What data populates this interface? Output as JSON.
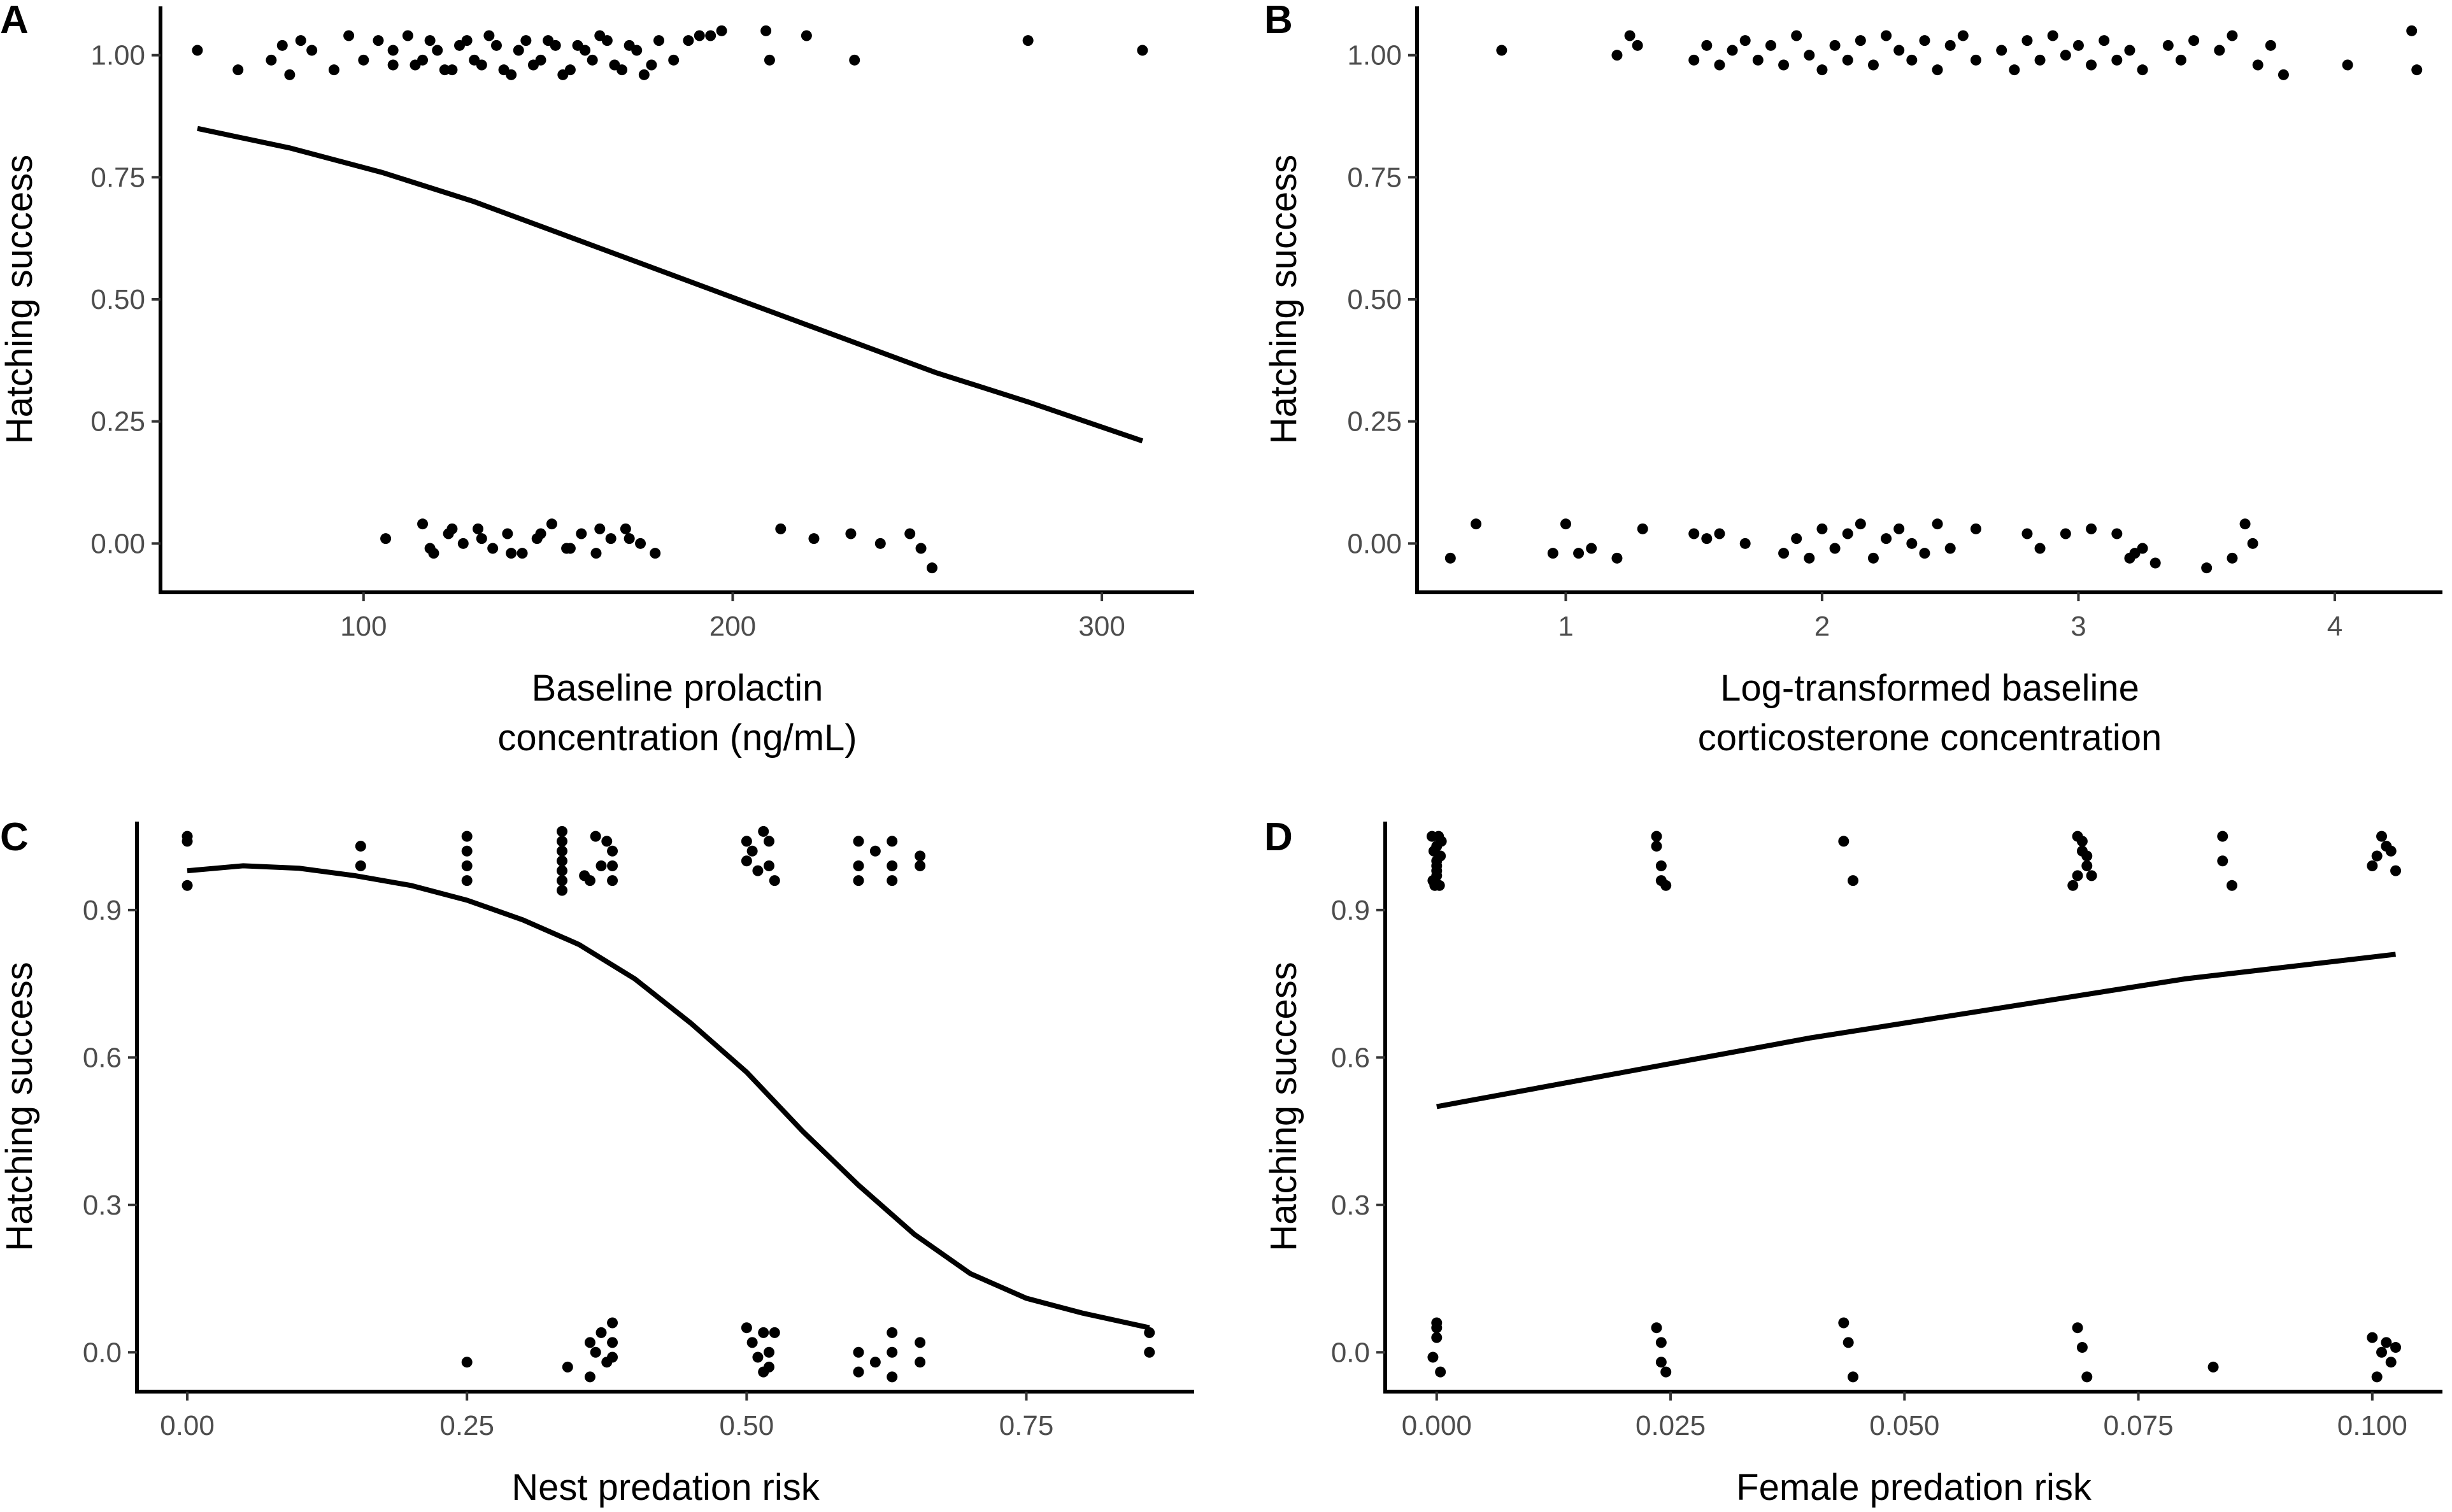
{
  "chart_data": [
    {
      "panel": "A",
      "type": "scatter",
      "xlabel": [
        "Baseline prolactin",
        "concentration (ng/mL)"
      ],
      "ylabel": "Hatching success",
      "xlim": [
        45,
        325
      ],
      "ylim": [
        -0.1,
        1.1
      ],
      "xticks": [
        100,
        200,
        300
      ],
      "xtick_labels": [
        "100",
        "200",
        "300"
      ],
      "yticks": [
        0,
        0.25,
        0.5,
        0.75,
        1
      ],
      "ytick_labels": [
        "0.00",
        "0.25",
        "0.50",
        "0.75",
        "1.00"
      ],
      "curve": {
        "x": [
          55,
          80,
          105,
          130,
          155,
          180,
          205,
          230,
          255,
          280,
          311
        ],
        "y": [
          0.85,
          0.81,
          0.76,
          0.7,
          0.63,
          0.56,
          0.49,
          0.42,
          0.35,
          0.29,
          0.21
        ]
      },
      "points": {
        "x": [
          55,
          66,
          75,
          78,
          80,
          83,
          86,
          92,
          96,
          100,
          104,
          108,
          112,
          116,
          120,
          124,
          128,
          132,
          136,
          140,
          144,
          148,
          152,
          156,
          160,
          164,
          168,
          172,
          176,
          180,
          184,
          108,
          114,
          118,
          122,
          126,
          130,
          134,
          138,
          142,
          146,
          150,
          154,
          158,
          162,
          166,
          170,
          174,
          178,
          188,
          191,
          194,
          197,
          209,
          210,
          220,
          233,
          280,
          311,
          106,
          116,
          119,
          123,
          127,
          131,
          135,
          139,
          143,
          147,
          151,
          155,
          159,
          163,
          167,
          171,
          175,
          179,
          118,
          124,
          132,
          140,
          148,
          156,
          164,
          172,
          213,
          222,
          232,
          240,
          248,
          251,
          254
        ],
        "y": [
          1.01,
          0.97,
          0.99,
          1.02,
          0.96,
          1.03,
          1.01,
          0.97,
          1.04,
          0.99,
          1.03,
          0.98,
          1.04,
          0.99,
          1.01,
          0.97,
          1.03,
          0.98,
          1.02,
          0.96,
          1.03,
          0.99,
          1.02,
          0.97,
          1.01,
          1.04,
          0.98,
          1.02,
          0.96,
          1.03,
          0.99,
          1.01,
          0.98,
          1.03,
          0.97,
          1.02,
          0.99,
          1.04,
          0.97,
          1.01,
          0.98,
          1.03,
          0.96,
          1.02,
          0.99,
          1.03,
          0.97,
          1.01,
          0.98,
          1.03,
          1.04,
          1.04,
          1.05,
          1.05,
          0.99,
          1.04,
          0.99,
          1.03,
          1.01,
          0.01,
          0.04,
          -0.02,
          0.02,
          0.0,
          0.03,
          -0.01,
          0.02,
          -0.02,
          0.01,
          0.04,
          -0.01,
          0.02,
          -0.02,
          0.01,
          0.03,
          0.0,
          -0.02,
          -0.01,
          0.03,
          0.01,
          -0.02,
          0.02,
          -0.01,
          0.03,
          0.01,
          0.03,
          0.01,
          0.02,
          0.0,
          0.02,
          -0.01,
          -0.05
        ]
      }
    },
    {
      "panel": "B",
      "type": "scatter",
      "xlabel": [
        "Log-transformed baseline",
        "corticosterone concentration"
      ],
      "ylabel": "Hatching success",
      "xlim": [
        0.42,
        4.42
      ],
      "ylim": [
        -0.1,
        1.1
      ],
      "xticks": [
        1,
        2,
        3,
        4
      ],
      "xtick_labels": [
        "1",
        "2",
        "3",
        "4"
      ],
      "yticks": [
        0,
        0.25,
        0.5,
        0.75,
        1
      ],
      "ytick_labels": [
        "0.00",
        "0.25",
        "0.50",
        "0.75",
        "1.00"
      ],
      "curve": null,
      "points": {
        "x": [
          0.75,
          1.2,
          1.25,
          1.28,
          1.5,
          1.55,
          1.6,
          1.65,
          1.7,
          1.75,
          1.8,
          1.85,
          1.9,
          1.95,
          2.0,
          2.05,
          2.1,
          2.15,
          2.2,
          2.25,
          2.3,
          2.35,
          2.4,
          2.45,
          2.5,
          2.55,
          2.6,
          2.7,
          2.75,
          2.8,
          2.85,
          2.9,
          2.95,
          3.0,
          3.05,
          3.1,
          3.15,
          3.2,
          3.25,
          3.35,
          3.4,
          3.45,
          3.55,
          3.6,
          3.7,
          3.75,
          3.8,
          4.05,
          4.3,
          4.32,
          0.55,
          0.65,
          0.95,
          1.0,
          1.05,
          1.1,
          1.2,
          1.3,
          1.5,
          1.55,
          1.6,
          1.7,
          1.85,
          1.9,
          1.95,
          2.0,
          2.05,
          2.1,
          2.15,
          2.2,
          2.25,
          2.3,
          2.35,
          2.4,
          2.45,
          2.5,
          2.6,
          2.8,
          2.85,
          2.95,
          3.05,
          3.15,
          3.2,
          3.22,
          3.25,
          3.3,
          3.5,
          3.6,
          3.65,
          3.68
        ],
        "y": [
          1.01,
          1.0,
          1.04,
          1.02,
          0.99,
          1.02,
          0.98,
          1.01,
          1.03,
          0.99,
          1.02,
          0.98,
          1.04,
          1.0,
          0.97,
          1.02,
          0.99,
          1.03,
          0.98,
          1.04,
          1.01,
          0.99,
          1.03,
          0.97,
          1.02,
          1.04,
          0.99,
          1.01,
          0.97,
          1.03,
          0.99,
          1.04,
          1.0,
          1.02,
          0.98,
          1.03,
          0.99,
          1.01,
          0.97,
          1.02,
          0.99,
          1.03,
          1.01,
          1.04,
          0.98,
          1.02,
          0.96,
          0.98,
          1.05,
          0.97,
          -0.03,
          0.04,
          -0.02,
          0.04,
          -0.02,
          -0.01,
          -0.03,
          0.03,
          0.02,
          0.01,
          0.02,
          0.0,
          -0.02,
          0.01,
          -0.03,
          0.03,
          -0.01,
          0.02,
          0.04,
          -0.03,
          0.01,
          0.03,
          0.0,
          -0.02,
          0.04,
          -0.01,
          0.03,
          0.02,
          -0.01,
          0.02,
          0.03,
          0.02,
          -0.03,
          -0.02,
          -0.01,
          -0.04,
          -0.05,
          -0.03,
          0.04,
          0.0
        ]
      }
    },
    {
      "panel": "C",
      "type": "scatter",
      "xlabel": [
        "Nest predation risk"
      ],
      "ylabel": "Hatching success",
      "xlim": [
        -0.045,
        0.9
      ],
      "ylim": [
        -0.08,
        1.08
      ],
      "xticks": [
        0,
        0.25,
        0.5,
        0.75
      ],
      "xtick_labels": [
        "0.00",
        "0.25",
        "0.50",
        "0.75"
      ],
      "yticks": [
        0,
        0.3,
        0.6,
        0.9
      ],
      "ytick_labels": [
        "0.0",
        "0.3",
        "0.6",
        "0.9"
      ],
      "curve": {
        "x": [
          0.0,
          0.05,
          0.1,
          0.15,
          0.2,
          0.25,
          0.3,
          0.35,
          0.4,
          0.45,
          0.5,
          0.55,
          0.6,
          0.65,
          0.7,
          0.75,
          0.8,
          0.86
        ],
        "y": [
          0.98,
          0.99,
          0.985,
          0.97,
          0.95,
          0.92,
          0.88,
          0.83,
          0.76,
          0.67,
          0.57,
          0.45,
          0.34,
          0.24,
          0.16,
          0.11,
          0.08,
          0.05
        ]
      },
      "points": {
        "x": [
          0.0,
          0.0,
          0.0,
          0.155,
          0.155,
          0.25,
          0.25,
          0.25,
          0.25,
          0.335,
          0.335,
          0.335,
          0.335,
          0.335,
          0.335,
          0.335,
          0.355,
          0.36,
          0.365,
          0.37,
          0.375,
          0.38,
          0.38,
          0.38,
          0.5,
          0.5,
          0.505,
          0.51,
          0.515,
          0.52,
          0.52,
          0.525,
          0.6,
          0.6,
          0.6,
          0.615,
          0.63,
          0.63,
          0.63,
          0.655,
          0.655,
          0.25,
          0.34,
          0.36,
          0.36,
          0.365,
          0.37,
          0.375,
          0.38,
          0.38,
          0.38,
          0.5,
          0.505,
          0.51,
          0.515,
          0.515,
          0.52,
          0.52,
          0.525,
          0.6,
          0.6,
          0.615,
          0.63,
          0.63,
          0.63,
          0.655,
          0.655,
          0.86,
          0.86
        ],
        "y": [
          1.05,
          1.04,
          0.95,
          1.03,
          0.99,
          1.05,
          1.02,
          0.99,
          0.96,
          1.06,
          1.04,
          1.02,
          1.0,
          0.98,
          0.96,
          0.94,
          0.97,
          0.96,
          1.05,
          0.99,
          1.04,
          1.02,
          0.99,
          0.96,
          1.04,
          1.0,
          1.02,
          0.98,
          1.06,
          1.04,
          0.99,
          0.96,
          1.04,
          0.99,
          0.96,
          1.02,
          1.04,
          0.99,
          0.96,
          1.01,
          0.99,
          -0.02,
          -0.03,
          0.02,
          -0.05,
          0.0,
          0.04,
          -0.02,
          0.06,
          0.02,
          -0.01,
          0.05,
          0.02,
          -0.01,
          0.04,
          -0.04,
          0.0,
          -0.03,
          0.04,
          0.0,
          -0.04,
          -0.02,
          0.04,
          0.0,
          -0.05,
          0.02,
          -0.02,
          0.04,
          0.0
        ]
      }
    },
    {
      "panel": "D",
      "type": "scatter",
      "xlabel": [
        "Female predation risk"
      ],
      "ylabel": "Hatching success",
      "xlim": [
        -0.0055,
        0.1075
      ],
      "ylim": [
        -0.08,
        1.08
      ],
      "xticks": [
        0,
        0.025,
        0.05,
        0.075,
        0.1
      ],
      "xtick_labels": [
        "0.000",
        "0.025",
        "0.050",
        "0.075",
        "0.100"
      ],
      "yticks": [
        0,
        0.3,
        0.6,
        0.9
      ],
      "ytick_labels": [
        "0.0",
        "0.3",
        "0.6",
        "0.9"
      ],
      "curve": {
        "x": [
          0.0,
          0.02,
          0.04,
          0.06,
          0.08,
          0.1025
        ],
        "y": [
          0.5,
          0.57,
          0.64,
          0.7,
          0.76,
          0.81
        ]
      },
      "points": {
        "x": [
          -0.0005,
          -0.0003,
          0.0,
          0.0,
          0.0003,
          0.0005,
          0.0,
          -0.0004,
          0.0004,
          0.0,
          0.0,
          -0.0002,
          0.0002,
          0.0235,
          0.0235,
          0.024,
          0.024,
          0.0245,
          0.0435,
          0.0445,
          0.0685,
          0.069,
          0.0695,
          0.07,
          0.068,
          0.069,
          0.0695,
          0.0685,
          0.0,
          0.0,
          -0.0004,
          0.0004,
          0.0,
          0.0235,
          0.024,
          0.024,
          0.0245,
          0.0435,
          0.044,
          0.0445,
          0.0685,
          0.069,
          0.0695,
          0.083,
          0.1,
          0.101,
          0.102,
          0.1015,
          0.1005,
          0.1025,
          0.084,
          0.084,
          0.085,
          0.101,
          0.102,
          0.1,
          0.1025,
          0.1015,
          0.1005
        ],
        "y": [
          1.05,
          1.02,
          0.99,
          0.97,
          0.95,
          1.04,
          1.0,
          0.96,
          1.01,
          0.98,
          1.03,
          0.95,
          1.05,
          1.05,
          1.03,
          0.99,
          0.96,
          0.95,
          1.04,
          0.96,
          1.05,
          1.02,
          0.99,
          0.97,
          0.95,
          1.04,
          1.01,
          0.97,
          0.06,
          0.03,
          -0.01,
          -0.04,
          0.05,
          0.05,
          0.02,
          -0.02,
          -0.04,
          0.06,
          0.02,
          -0.05,
          0.05,
          0.01,
          -0.05,
          -0.03,
          0.03,
          0.0,
          -0.02,
          0.02,
          -0.05,
          0.01,
          1.05,
          1.0,
          0.95,
          1.05,
          1.02,
          0.99,
          0.98,
          1.03,
          1.01
        ]
      }
    }
  ]
}
